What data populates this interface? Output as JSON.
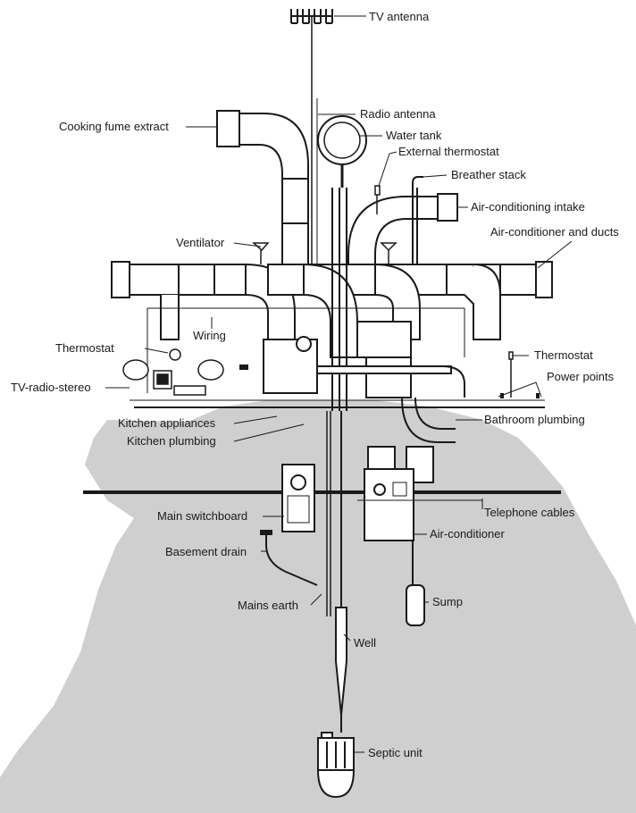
{
  "figure": {
    "description_labels": {
      "tv_antenna": "TV antenna",
      "radio_antenna": "Radio antenna",
      "water_tank": "Water tank",
      "cooking_fume_extract": "Cooking fume extract",
      "external_thermostat": "External thermostat",
      "breather_stack": "Breather stack",
      "air_conditioning_intake": "Air-conditioning intake",
      "air_conditioner_and_ducts": "Air-conditioner and ducts",
      "ventilator": "Ventilator",
      "wiring": "Wiring",
      "thermostat_left": "Thermostat",
      "thermostat_right": "Thermostat",
      "power_points": "Power points",
      "tv_radio_stereo": "TV-radio-stereo",
      "kitchen_appliances": "Kitchen appliances",
      "kitchen_plumbing": "Kitchen plumbing",
      "bathroom_plumbing": "Bathroom plumbing",
      "telephone_cables": "Telephone cables",
      "main_switchboard": "Main switchboard",
      "air_conditioner": "Air-conditioner",
      "basement_drain": "Basement drain",
      "sump": "Sump",
      "mains_earth": "Mains earth",
      "well": "Well",
      "septic_unit": "Septic unit"
    }
  },
  "colors": {
    "ground": "#cfcfcf",
    "ink": "#1a1a1a",
    "paper": "#ffffff"
  }
}
